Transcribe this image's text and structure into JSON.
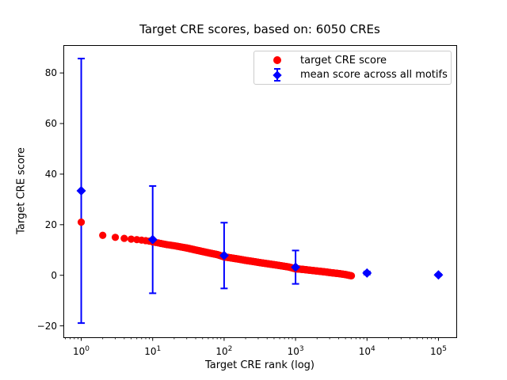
{
  "figure": {
    "title": "Target CRE scores, based on: 6050 CREs",
    "background_color": "#ffffff",
    "text_color": "#000000"
  },
  "chart_data": {
    "type": "scatter",
    "title": "Target CRE scores, based on: 6050 CREs",
    "xlabel": "Target CRE rank (log)",
    "ylabel": "Target CRE score",
    "x_scale": "log",
    "xlim_log10": [
      -0.25,
      5.25
    ],
    "ylim": [
      -24.5,
      91
    ],
    "x_tick_exponents": [
      0,
      1,
      2,
      3,
      4,
      5
    ],
    "y_ticks": [
      -20,
      0,
      20,
      40,
      60,
      80
    ],
    "grid": false,
    "n_cres": 6050,
    "series": [
      {
        "name": "target CRE score",
        "marker": "circle",
        "color": "#ff0000",
        "note": "~6050 red dots from rank 1 to 6050; control points [rank, score] sampled off the plot",
        "control_points": [
          [
            1,
            21.0
          ],
          [
            2,
            15.8
          ],
          [
            3,
            15.0
          ],
          [
            4,
            14.6
          ],
          [
            5,
            14.3
          ],
          [
            6,
            14.1
          ],
          [
            7,
            13.9
          ],
          [
            8,
            13.7
          ],
          [
            9,
            13.5
          ],
          [
            10,
            13.2
          ],
          [
            13,
            12.6
          ],
          [
            16,
            12.1
          ],
          [
            20,
            11.7
          ],
          [
            25,
            11.2
          ],
          [
            30,
            10.8
          ],
          [
            40,
            10.0
          ],
          [
            50,
            9.4
          ],
          [
            65,
            8.7
          ],
          [
            80,
            8.2
          ],
          [
            100,
            7.3
          ],
          [
            130,
            6.8
          ],
          [
            160,
            6.4
          ],
          [
            200,
            5.9
          ],
          [
            250,
            5.5
          ],
          [
            320,
            5.0
          ],
          [
            400,
            4.6
          ],
          [
            500,
            4.2
          ],
          [
            650,
            3.7
          ],
          [
            800,
            3.3
          ],
          [
            1000,
            2.6
          ],
          [
            1300,
            2.3
          ],
          [
            1600,
            2.0
          ],
          [
            2000,
            1.7
          ],
          [
            2500,
            1.4
          ],
          [
            3200,
            1.0
          ],
          [
            4000,
            0.7
          ],
          [
            5000,
            0.3
          ],
          [
            6050,
            -0.2
          ]
        ]
      },
      {
        "name": "mean score across all motifs",
        "marker": "diamond",
        "color": "#0000ff",
        "points": [
          {
            "rank": 1,
            "mean": 33.4,
            "std": 52.3
          },
          {
            "rank": 10,
            "mean": 14.1,
            "std": 21.2
          },
          {
            "rank": 100,
            "mean": 7.8,
            "std": 13.0
          },
          {
            "rank": 1000,
            "mean": 3.2,
            "std": 6.6
          },
          {
            "rank": 10000,
            "mean": 0.9,
            "std": 0.6
          },
          {
            "rank": 100000,
            "mean": 0.15,
            "std": 0.3
          }
        ]
      }
    ],
    "legend": {
      "position": "upper right",
      "entries": [
        {
          "label": "target CRE score",
          "marker": "red-circle",
          "color": "#ff0000"
        },
        {
          "label": "mean score across all motifs",
          "marker": "blue-diamond-errorbar",
          "color": "#0000ff"
        }
      ]
    }
  }
}
